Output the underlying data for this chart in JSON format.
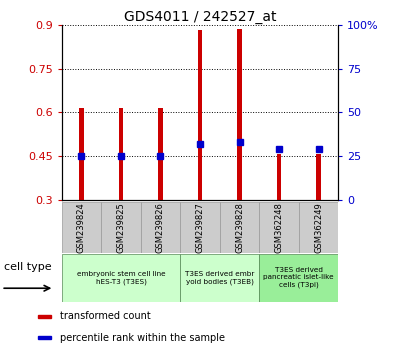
{
  "title": "GDS4011 / 242527_at",
  "samples": [
    "GSM239824",
    "GSM239825",
    "GSM239826",
    "GSM239827",
    "GSM239828",
    "GSM362248",
    "GSM362249"
  ],
  "transformed_counts": [
    0.615,
    0.615,
    0.615,
    0.882,
    0.887,
    0.458,
    0.458
  ],
  "percentile_ranks": [
    25,
    25,
    25,
    32,
    33,
    29,
    29
  ],
  "ylim_left": [
    0.3,
    0.9
  ],
  "ylim_right": [
    0,
    100
  ],
  "yticks_left": [
    0.3,
    0.45,
    0.6,
    0.75,
    0.9
  ],
  "yticks_right": [
    0,
    25,
    50,
    75,
    100
  ],
  "ytick_labels_left": [
    "0.3",
    "0.45",
    "0.6",
    "0.75",
    "0.9"
  ],
  "ytick_labels_right": [
    "0",
    "25",
    "50",
    "75",
    "100%"
  ],
  "bar_color": "#cc0000",
  "dot_color": "#0000cc",
  "cell_groups": [
    {
      "label": "embryonic stem cell line\nhES-T3 (T3ES)",
      "start": 0,
      "end": 3,
      "color": "#ccffcc"
    },
    {
      "label": "T3ES derived embr\nyoid bodies (T3EB)",
      "start": 3,
      "end": 5,
      "color": "#ccffcc"
    },
    {
      "label": "T3ES derived\npancreatic islet-like\ncells (T3pi)",
      "start": 5,
      "end": 7,
      "color": "#99ee99"
    }
  ],
  "legend_items": [
    {
      "color": "#cc0000",
      "label": "transformed count"
    },
    {
      "color": "#0000cc",
      "label": "percentile rank within the sample"
    }
  ],
  "cell_type_label": "cell type",
  "right_top_label": "100%",
  "right_bottom_label": "0"
}
